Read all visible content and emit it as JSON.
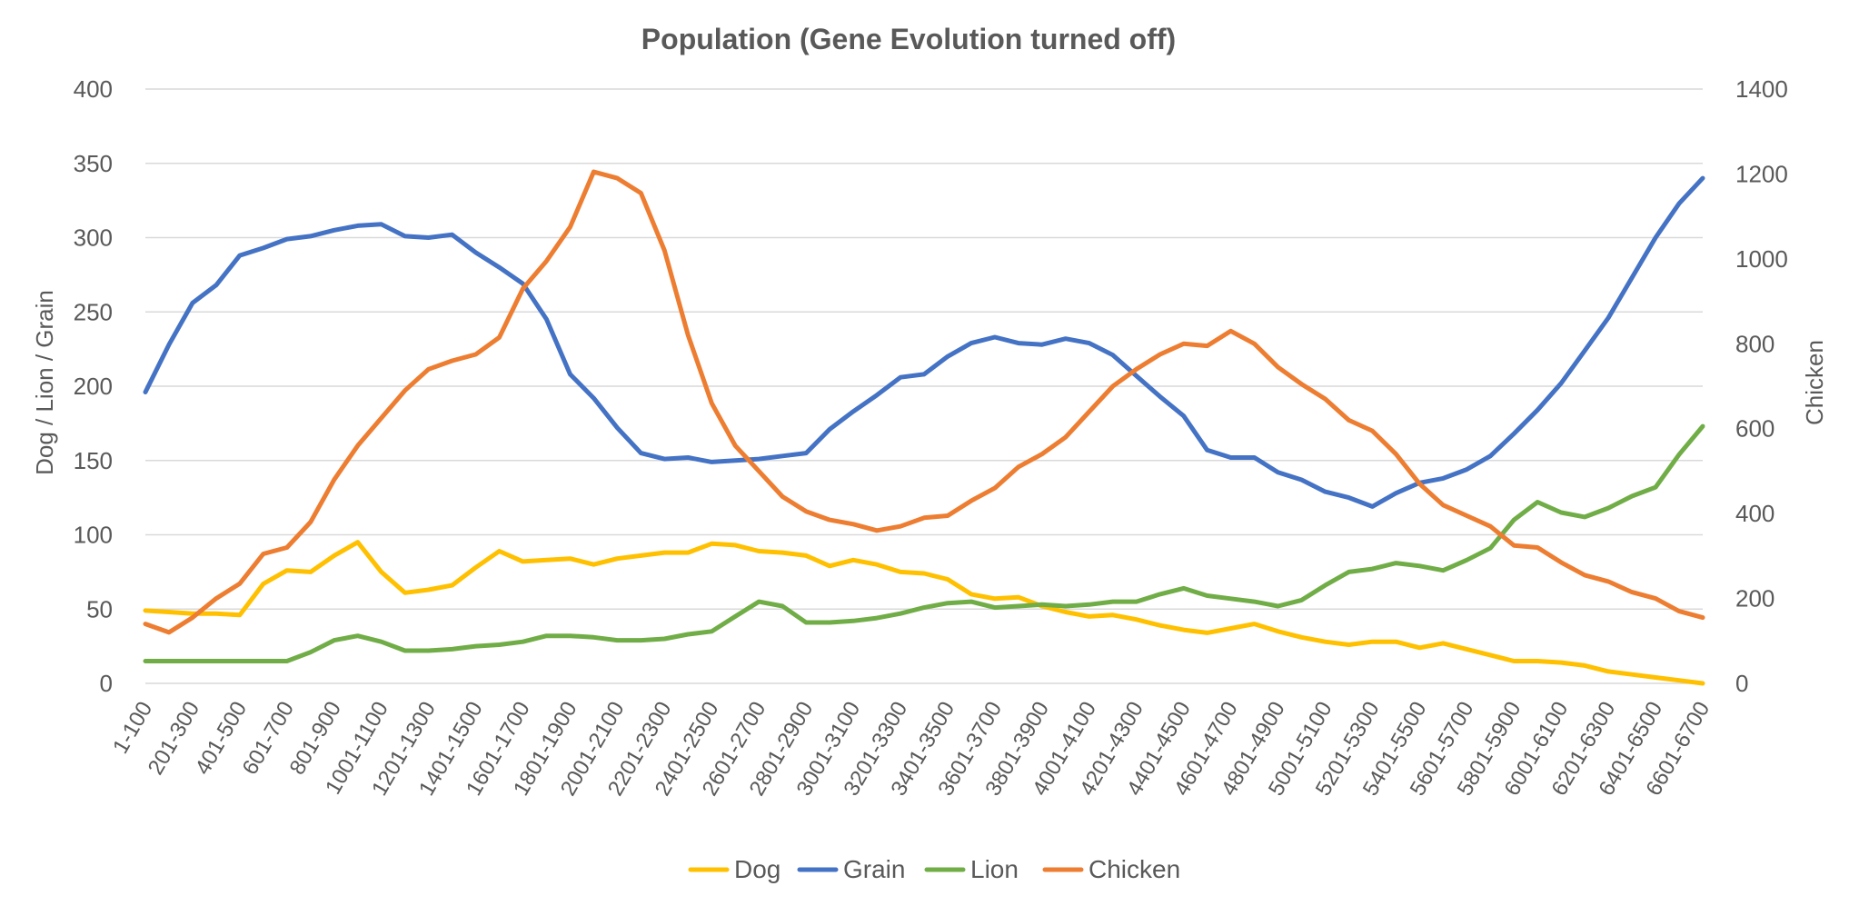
{
  "chart_data": {
    "type": "line",
    "title": "Population (Gene Evolution turned off)",
    "ylabel_left": "Dog / Lion / Grain",
    "ylabel_right": "Chicken",
    "xlabel": "",
    "ylim_left": [
      0,
      400
    ],
    "ylim_right": [
      0,
      1400
    ],
    "yticks_left": [
      0,
      50,
      100,
      150,
      200,
      250,
      300,
      350,
      400
    ],
    "yticks_right": [
      0,
      200,
      400,
      600,
      800,
      1000,
      1200,
      1400
    ],
    "grid": true,
    "legend_position": "bottom",
    "categories": [
      "1-100",
      "101-200",
      "201-300",
      "301-400",
      "401-500",
      "501-600",
      "601-700",
      "701-800",
      "801-900",
      "901-1000",
      "1001-1100",
      "1101-1200",
      "1201-1300",
      "1301-1400",
      "1401-1500",
      "1501-1600",
      "1601-1700",
      "1701-1800",
      "1801-1900",
      "1901-2000",
      "2001-2100",
      "2101-2200",
      "2201-2300",
      "2301-2400",
      "2401-2500",
      "2501-2600",
      "2601-2700",
      "2701-2800",
      "2801-2900",
      "2901-3000",
      "3001-3100",
      "3101-3200",
      "3201-3300",
      "3301-3400",
      "3401-3500",
      "3501-3600",
      "3601-3700",
      "3701-3800",
      "3801-3900",
      "3901-4000",
      "4001-4100",
      "4101-4200",
      "4201-4300",
      "4301-4400",
      "4401-4500",
      "4501-4600",
      "4601-4700",
      "4701-4800",
      "4801-4900",
      "4901-5000",
      "5001-5100",
      "5101-5200",
      "5201-5300",
      "5301-5400",
      "5401-5500",
      "5501-5600",
      "5601-5700",
      "5701-5800",
      "5801-5900",
      "5901-6000",
      "6001-6100",
      "6101-6200",
      "6201-6300",
      "6301-6400",
      "6401-6500",
      "6501-6600",
      "6601-6700"
    ],
    "visible_tick_labels": [
      "1-100",
      "201-300",
      "401-500",
      "601-700",
      "801-900",
      "1001-1100",
      "1201-1300",
      "1401-1500",
      "1601-1700",
      "1801-1900",
      "2001-2100",
      "2201-2300",
      "2401-2500",
      "2601-2700",
      "2801-2900",
      "3001-3100",
      "3201-3300",
      "3401-3500",
      "3601-3700",
      "3801-3900",
      "4001-4100",
      "4201-4300",
      "4401-4500",
      "4601-4700",
      "4801-4900",
      "5001-5100",
      "5201-5300",
      "5401-5500",
      "5601-5700",
      "5801-5900",
      "6001-6100",
      "6201-6300",
      "6401-6500",
      "6601-6700"
    ],
    "series": [
      {
        "name": "Dog",
        "axis": "left",
        "color": "#FFC000",
        "values": [
          49,
          48,
          47,
          47,
          46,
          67,
          76,
          75,
          86,
          95,
          75,
          61,
          63,
          66,
          78,
          89,
          82,
          83,
          84,
          80,
          84,
          86,
          88,
          88,
          94,
          93,
          89,
          88,
          86,
          79,
          83,
          80,
          75,
          74,
          70,
          60,
          57,
          58,
          52,
          48,
          45,
          46,
          43,
          39,
          36,
          34,
          37,
          40,
          35,
          31,
          28,
          26,
          28,
          28,
          24,
          27,
          23,
          19,
          15,
          15,
          14,
          12,
          8,
          6,
          4,
          2,
          0
        ]
      },
      {
        "name": "Grain",
        "axis": "left",
        "color": "#4472C4",
        "values": [
          196,
          228,
          256,
          268,
          288,
          293,
          299,
          301,
          305,
          308,
          309,
          301,
          300,
          302,
          290,
          280,
          269,
          245,
          208,
          192,
          172,
          155,
          151,
          152,
          149,
          150,
          151,
          153,
          155,
          171,
          183,
          194,
          206,
          208,
          220,
          229,
          233,
          229,
          228,
          232,
          229,
          221,
          207,
          193,
          180,
          157,
          152,
          152,
          142,
          137,
          129,
          125,
          119,
          128,
          135,
          138,
          144,
          153,
          168,
          184,
          202,
          224,
          246,
          273,
          300,
          323,
          340
        ]
      },
      {
        "name": "Lion",
        "axis": "left",
        "color": "#70AD47",
        "values": [
          15,
          15,
          15,
          15,
          15,
          15,
          15,
          21,
          29,
          32,
          28,
          22,
          22,
          23,
          25,
          26,
          28,
          32,
          32,
          31,
          29,
          29,
          30,
          33,
          35,
          45,
          55,
          52,
          41,
          41,
          42,
          44,
          47,
          51,
          54,
          55,
          51,
          52,
          53,
          52,
          53,
          55,
          55,
          60,
          64,
          59,
          57,
          55,
          52,
          56,
          66,
          75,
          77,
          81,
          79,
          76,
          83,
          91,
          110,
          122,
          115,
          112,
          118,
          126,
          132,
          154,
          173
        ]
      },
      {
        "name": "Chicken",
        "axis": "right",
        "color": "#ED7D31",
        "values": [
          140,
          120,
          155,
          200,
          235,
          305,
          320,
          380,
          480,
          560,
          625,
          690,
          740,
          760,
          775,
          815,
          930,
          995,
          1075,
          1205,
          1190,
          1155,
          1020,
          820,
          660,
          560,
          500,
          440,
          405,
          385,
          375,
          360,
          370,
          390,
          395,
          430,
          460,
          510,
          540,
          580,
          640,
          700,
          740,
          775,
          800,
          795,
          830,
          800,
          745,
          705,
          670,
          620,
          595,
          540,
          470,
          420,
          395,
          370,
          325,
          320,
          285,
          255,
          240,
          215,
          200,
          170,
          155
        ]
      }
    ]
  }
}
